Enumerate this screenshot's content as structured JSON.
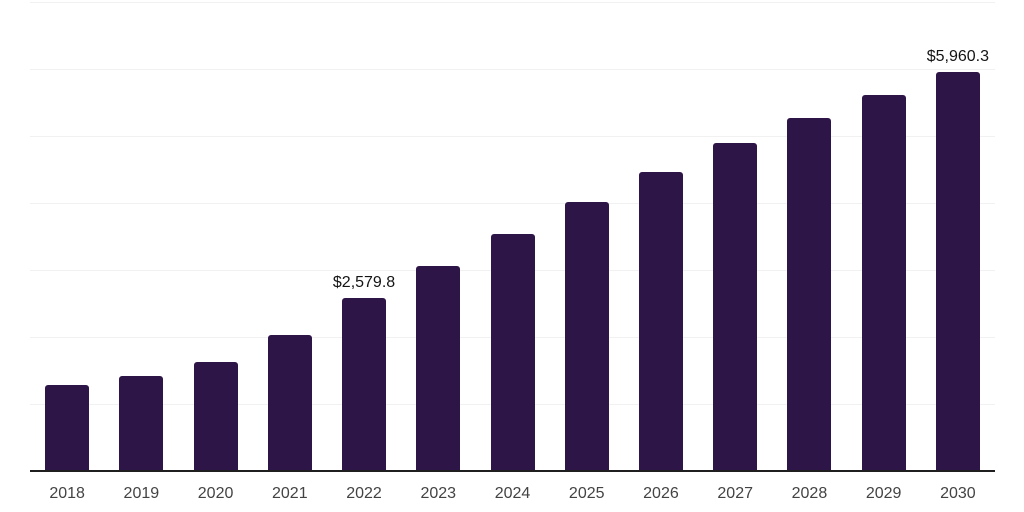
{
  "chart_data": {
    "type": "bar",
    "title": "",
    "xlabel": "",
    "ylabel": "",
    "categories": [
      "2018",
      "2019",
      "2020",
      "2021",
      "2022",
      "2023",
      "2024",
      "2025",
      "2026",
      "2027",
      "2028",
      "2029",
      "2030"
    ],
    "values": [
      1280,
      1420,
      1630,
      2030,
      2579.8,
      3060,
      3540,
      4015,
      4465,
      4895,
      5270,
      5610,
      5960.3
    ],
    "data_labels": [
      {
        "category": "2022",
        "text": "$2,579.8"
      },
      {
        "category": "2030",
        "text": "$5,960.3"
      }
    ],
    "ylim": [
      0,
      7000
    ],
    "gridline_step": 1000,
    "grid": true,
    "legend": false,
    "y_axis_tick_labels_shown": false,
    "colors": {
      "bar": "#2e1547",
      "gridline": "#f1f1f2",
      "axis_line": "#1f1f1f",
      "data_label_text": "#141414",
      "tick_label_text": "#434343",
      "background": "#ffffff"
    }
  }
}
